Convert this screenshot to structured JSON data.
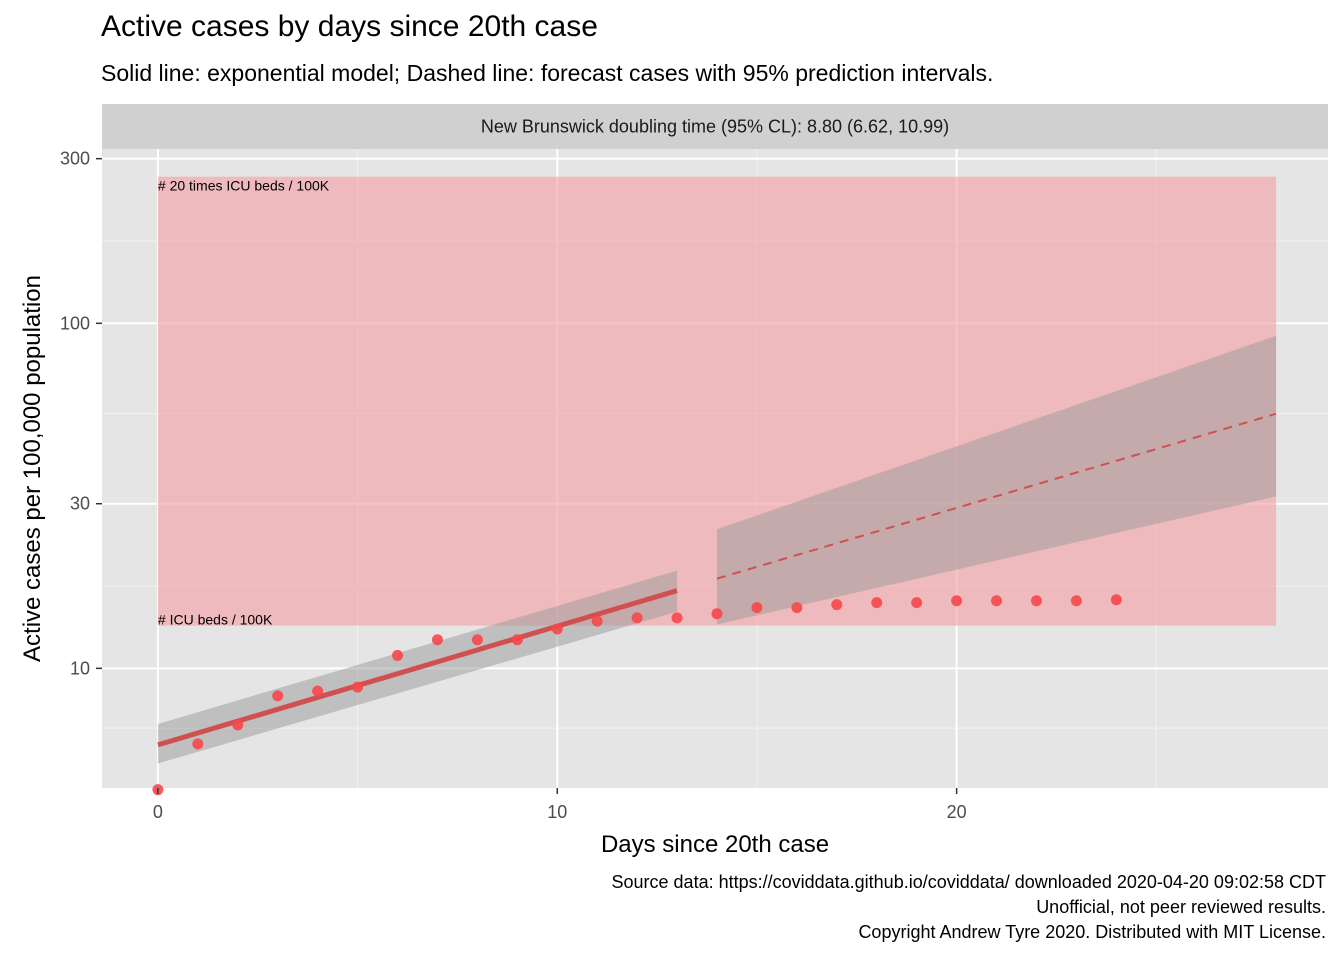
{
  "title": "Active cases by days since 20th case",
  "subtitle": "Solid line: exponential model; Dashed line: forecast cases with 95% prediction intervals.",
  "caption": [
    "Source data: https://coviddata.github.io/coviddata/ downloaded  2020-04-20 09:02:58 CDT",
    "Unofficial, not peer reviewed results.",
    "Copyright Andrew Tyre 2020. Distributed with MIT License."
  ],
  "chart_data": {
    "type": "scatter",
    "facet_label": "New Brunswick doubling time (95% CL): 8.80 (6.62, 10.99)",
    "xlabel": "Days since 20th case",
    "ylabel": "Active cases per 100,000 population",
    "y_scale": "log10",
    "xlim": [
      -1.4,
      29.3
    ],
    "ylim": [
      4.5,
      320
    ],
    "x_ticks": [
      0,
      10,
      20
    ],
    "x_tick_labels": [
      "0",
      "10",
      "20"
    ],
    "y_ticks": [
      10,
      30,
      100,
      300
    ],
    "y_tick_labels": [
      "10",
      "30",
      "100",
      "300"
    ],
    "grid": true,
    "colors": {
      "points": "#f8474a",
      "fit_line": "#d05050",
      "forecast_line": "#d05050",
      "ribbon": "#999999",
      "icu_band": "#f4a3a8",
      "panel_bg": "#e5e5e5",
      "strip_bg": "#d0d0d0"
    },
    "icu_band": {
      "x": [
        0,
        28
      ],
      "y": [
        13.3,
        266
      ],
      "lower_label": "# ICU beds / 100K",
      "upper_label": "# 20 times ICU beds / 100K"
    },
    "points": {
      "x": [
        0,
        1,
        2,
        3,
        4,
        5,
        6,
        7,
        8,
        9,
        10,
        11,
        12,
        13,
        14,
        15,
        16,
        17,
        18,
        19,
        20,
        21,
        22,
        23,
        24
      ],
      "y": [
        4.45,
        6.04,
        6.85,
        8.32,
        8.59,
        8.82,
        10.9,
        12.1,
        12.1,
        12.1,
        13.0,
        13.7,
        14.0,
        14.0,
        14.4,
        15.0,
        15.0,
        15.3,
        15.5,
        15.5,
        15.7,
        15.7,
        15.7,
        15.7,
        15.8
      ]
    },
    "fit": {
      "x": [
        0,
        13
      ],
      "y": [
        6.0,
        16.8
      ],
      "lower": [
        5.3,
        14.6
      ],
      "upper": [
        6.9,
        19.2
      ]
    },
    "forecast": {
      "x": [
        14,
        28
      ],
      "y": [
        18.2,
        54.7
      ],
      "lower": [
        13.4,
        31.5
      ],
      "upper": [
        25.3,
        92.0
      ]
    }
  }
}
